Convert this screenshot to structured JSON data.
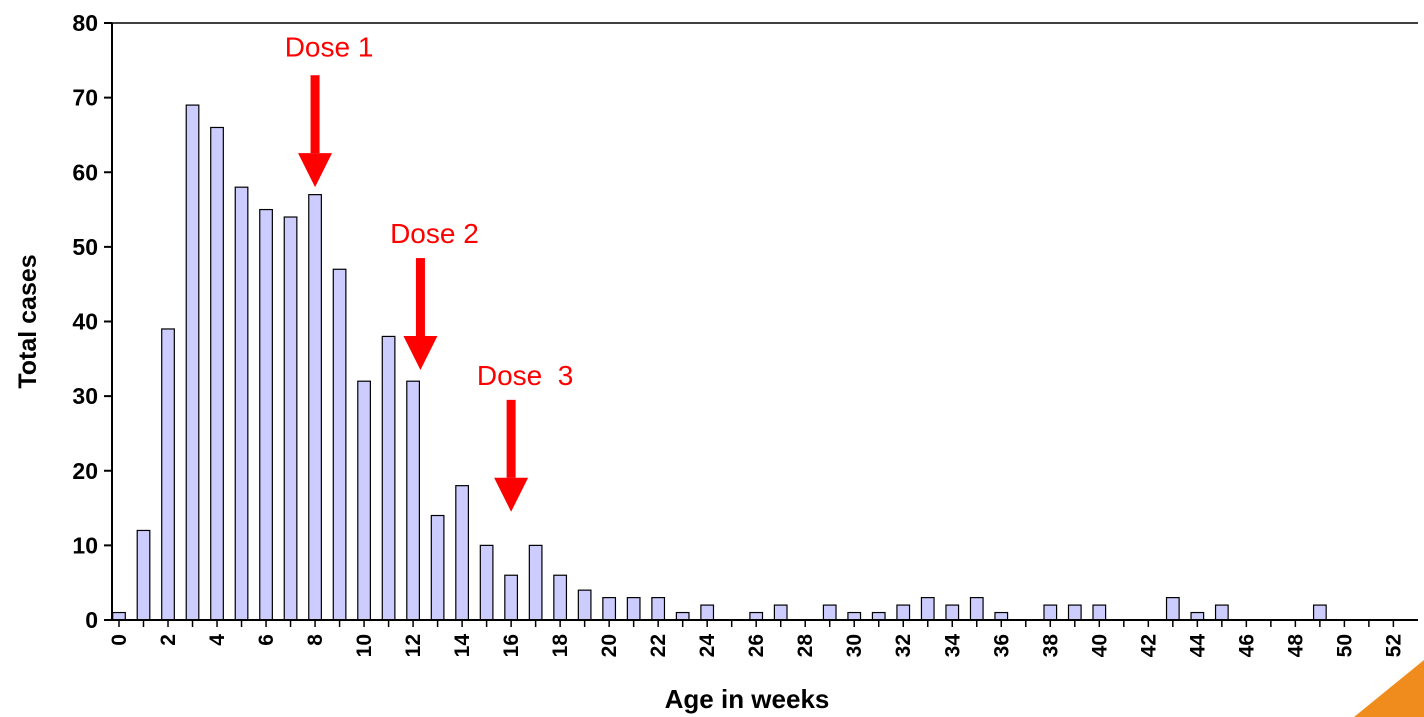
{
  "chart_data": {
    "type": "bar",
    "title": "",
    "xlabel": "Age in weeks",
    "ylabel": "Total cases",
    "ylim": [
      0,
      80
    ],
    "yticks": [
      0,
      10,
      20,
      30,
      40,
      50,
      60,
      70,
      80
    ],
    "grid": false,
    "legend": "none",
    "x": [
      0,
      1,
      2,
      3,
      4,
      5,
      6,
      7,
      8,
      9,
      10,
      11,
      12,
      13,
      14,
      15,
      16,
      17,
      18,
      19,
      20,
      21,
      22,
      23,
      24,
      25,
      26,
      27,
      28,
      29,
      30,
      31,
      32,
      33,
      34,
      35,
      36,
      37,
      38,
      39,
      40,
      41,
      42,
      43,
      44,
      45,
      46,
      47,
      48,
      49,
      50,
      51,
      52
    ],
    "xtick_labels": [
      "0",
      "2",
      "4",
      "6",
      "8",
      "10",
      "12",
      "14",
      "16",
      "18",
      "20",
      "22",
      "24",
      "26",
      "28",
      "30",
      "32",
      "34",
      "36",
      "38",
      "40",
      "42",
      "44",
      "46",
      "48",
      "50",
      "52"
    ],
    "values": [
      1,
      12,
      39,
      69,
      66,
      58,
      55,
      54,
      57,
      47,
      32,
      38,
      32,
      14,
      18,
      10,
      6,
      10,
      6,
      4,
      3,
      3,
      3,
      1,
      2,
      0,
      1,
      2,
      0,
      2,
      1,
      1,
      2,
      3,
      2,
      3,
      1,
      0,
      2,
      2,
      2,
      0,
      0,
      3,
      1,
      2,
      0,
      0,
      0,
      2,
      0,
      0,
      0
    ],
    "bar_color": "#ccccff",
    "bar_edge_color": "#000000",
    "annotations": [
      {
        "text": "Dose 1",
        "arrow_to_x": 8,
        "arrow_to_y": 58,
        "arrow_from_y": 73,
        "text_y": 75.5,
        "color": "#ff0000"
      },
      {
        "text": "Dose 2",
        "arrow_to_x": 12.3,
        "arrow_to_y": 33.5,
        "arrow_from_y": 48.5,
        "text_y": 50.5,
        "color": "#ff0000"
      },
      {
        "text": "Dose  3",
        "arrow_to_x": 16,
        "arrow_to_y": 14.5,
        "arrow_from_y": 29.5,
        "text_y": 31.5,
        "color": "#ff0000"
      }
    ]
  },
  "decor": {
    "corner_accent": "orange-corner-triangle",
    "corner_color": "#f08c1e"
  }
}
